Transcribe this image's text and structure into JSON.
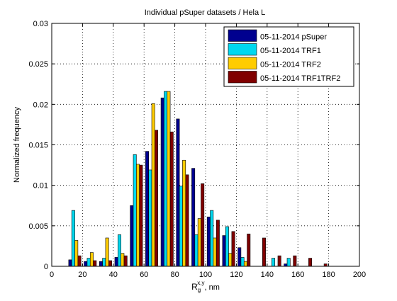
{
  "chart_data": {
    "type": "bar",
    "title": "Individual pSuper datasets / Hela L",
    "xlabel": "R",
    "xlabel_sub": "g",
    "xlabel_sup": "x,y",
    "xlabel_unit": ", nm",
    "ylabel": "Normalized frequency",
    "xlim": [
      0,
      200
    ],
    "ylim": [
      0,
      0.03
    ],
    "xticks": [
      0,
      20,
      40,
      60,
      80,
      100,
      120,
      140,
      160,
      180,
      200
    ],
    "yticks": [
      "0",
      "0.005",
      "0.01",
      "0.015",
      "0.02",
      "0.025",
      "0.03"
    ],
    "grid": true,
    "legend_position": "top-right",
    "bin_centers": [
      15,
      25,
      35,
      45,
      55,
      65,
      75,
      85,
      95,
      105,
      115,
      125,
      135,
      145,
      155,
      165,
      175
    ],
    "series": [
      {
        "name": "05-11-2014 pSuper",
        "color": "#00008f",
        "values": [
          0.0008,
          0.0006,
          0.0006,
          0.0011,
          0.0075,
          0.0142,
          0.0208,
          0.0182,
          0.0121,
          0.0061,
          0.0038,
          0.0023,
          0,
          0,
          0.0003,
          0,
          0
        ]
      },
      {
        "name": "05-11-2014 TRF1",
        "color": "#00d8ef",
        "values": [
          0.0069,
          0.001,
          0.001,
          0.0039,
          0.0138,
          0.0119,
          0.0216,
          0.0099,
          0.0039,
          0.0069,
          0.0049,
          0.0011,
          0,
          0.001,
          0.001,
          0,
          0
        ]
      },
      {
        "name": "05-11-2014 TRF2",
        "color": "#ffcc00",
        "values": [
          0.0032,
          0.0017,
          0.0035,
          0.0016,
          0.0126,
          0.0201,
          0.0216,
          0.0131,
          0.0059,
          0.0035,
          0.0016,
          0.0006,
          0,
          0,
          0,
          0,
          0
        ]
      },
      {
        "name": "05-11-2014 TRF1TRF2",
        "color": "#800000",
        "values": [
          0.0013,
          0.0007,
          0.0007,
          0.0013,
          0.0125,
          0.0168,
          0.0166,
          0.0113,
          0.0102,
          0.0057,
          0.0043,
          0.004,
          0.0035,
          0.0013,
          0.0013,
          0.001,
          0.0003
        ]
      }
    ]
  }
}
